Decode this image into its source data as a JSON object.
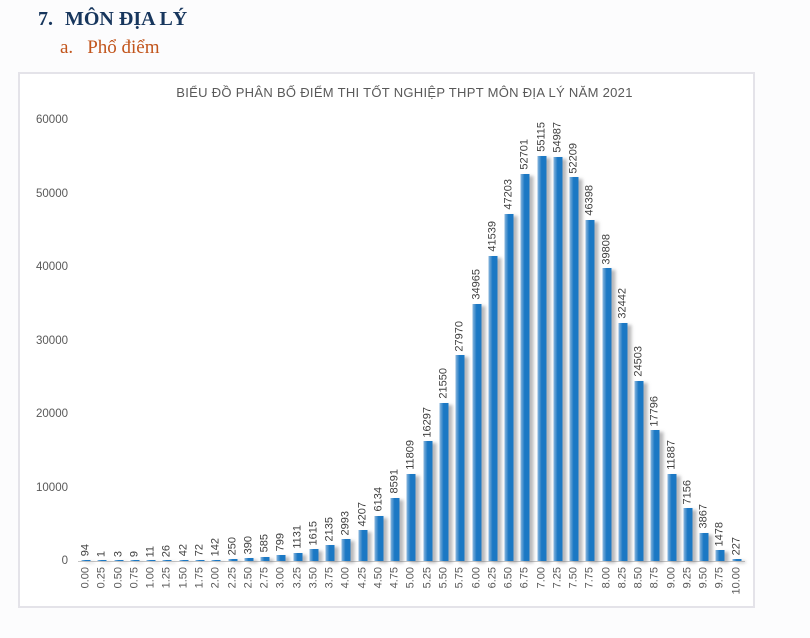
{
  "page": {
    "heading": {
      "number": "7.",
      "title": "MÔN ĐỊA LÝ"
    },
    "subheading": {
      "letter": "a.",
      "title": "Phổ điểm"
    }
  },
  "chart_data": {
    "type": "bar",
    "title": "BIỂU ĐỒ PHÂN BỐ ĐIỂM THI TỐT NGHIỆP THPT MÔN ĐỊA LÝ NĂM 2021",
    "categories": [
      "0.00",
      "0.25",
      "0.50",
      "0.75",
      "1.00",
      "1.25",
      "1.50",
      "1.75",
      "2.00",
      "2.25",
      "2.50",
      "2.75",
      "3.00",
      "3.25",
      "3.50",
      "3.75",
      "4.00",
      "4.25",
      "4.50",
      "4.75",
      "5.00",
      "5.25",
      "5.50",
      "5.75",
      "6.00",
      "6.25",
      "6.50",
      "6.75",
      "7.00",
      "7.25",
      "7.50",
      "7.75",
      "8.00",
      "8.25",
      "8.50",
      "8.75",
      "9.00",
      "9.25",
      "9.50",
      "9.75",
      "10.00"
    ],
    "values": [
      94,
      1,
      3,
      9,
      11,
      26,
      42,
      72,
      142,
      250,
      390,
      585,
      799,
      1131,
      1615,
      2135,
      2993,
      4207,
      6134,
      8591,
      11809,
      16297,
      21550,
      27970,
      34965,
      41539,
      47203,
      52701,
      55115,
      54987,
      52209,
      46398,
      39808,
      32442,
      24503,
      17796,
      11887,
      7156,
      3867,
      1478,
      227
    ],
    "xlabel": "",
    "ylabel": "",
    "ylim": [
      0,
      60000
    ],
    "y_ticks": [
      0,
      10000,
      20000,
      30000,
      40000,
      50000,
      60000
    ],
    "grid": false,
    "legend": "none",
    "bar_color": "#1b78c4",
    "bar_highlight_color": "#8ab6dd",
    "value_label_color": "#3f3f3f",
    "axis_text_color": "#595959",
    "title_color": "#595959",
    "heading_color": "#17365d",
    "subheading_color": "#c2551c"
  }
}
